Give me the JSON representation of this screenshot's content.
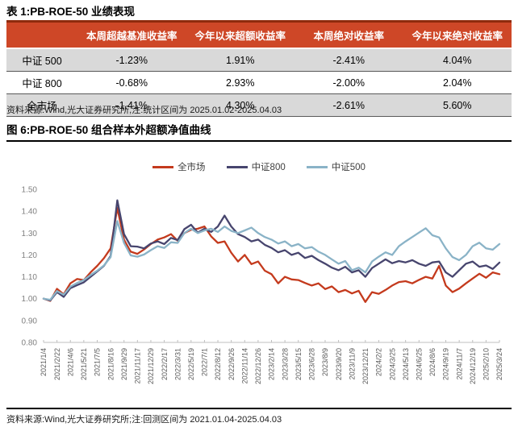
{
  "table": {
    "title": "表 1:PB-ROE-50 业绩表现",
    "headers": [
      "",
      "本周超越基准收益率",
      "今年以来超额收益率",
      "本周绝对收益率",
      "今年以来绝对收益率"
    ],
    "rows": [
      {
        "label": "中证 500",
        "values": [
          "-1.23%",
          "1.91%",
          "-2.41%",
          "4.04%"
        ]
      },
      {
        "label": "中证 800",
        "values": [
          "-0.68%",
          "2.93%",
          "-2.00%",
          "2.04%"
        ]
      },
      {
        "label": "全市场",
        "values": [
          "-1.41%",
          "4.30%",
          "-2.61%",
          "5.60%"
        ]
      }
    ],
    "note": "资料来源:Wind,光大证券研究所,注:统计区间为 2025.01.02-2025.04.03",
    "header_bg": "#CE4727",
    "header_top_border": "#8E2A0D",
    "shade_row_bg": "#D9D9D9"
  },
  "figure": {
    "title": "图 6:PB-ROE-50 组合样本外超额净值曲线",
    "note": "资料来源:Wind,光大证券研究所;注:回测区间为 2021.01.04-2025.04.03"
  },
  "chart_data": {
    "type": "line",
    "title": "PB-ROE-50 组合样本外超额净值曲线",
    "ylim": [
      0.8,
      1.5
    ],
    "yticks": [
      0.8,
      0.9,
      1.0,
      1.1,
      1.2,
      1.3,
      1.4,
      1.5
    ],
    "grid": false,
    "legend_position": "top",
    "axis_color": "#BFBFBF",
    "x_tick_labels": [
      "2021/1/4",
      "2021/2/22",
      "2021/4/6",
      "2021/5/21",
      "2021/7/5",
      "2021/8/16",
      "2021/9/29",
      "2021/11/17",
      "2021/12/29",
      "2022/2/17",
      "2022/3/31",
      "2022/5/19",
      "2022/7/1",
      "2022/8/12",
      "2022/9/26",
      "2022/11/14",
      "2022/12/26",
      "2023/2/14",
      "2023/3/28",
      "2023/5/15",
      "2023/6/28",
      "2023/8/9",
      "2023/9/20",
      "2023/11/9",
      "2023/12/21",
      "2024/2/2",
      "2024/3/25",
      "2024/5/13",
      "2024/6/25",
      "2024/8/6",
      "2024/9/19",
      "2024/11/7",
      "2024/12/19",
      "2025/2/10",
      "2025/3/24"
    ],
    "series": [
      {
        "name": "全市场",
        "key": "all-market",
        "color": "#C43A1D",
        "values": [
          1.0,
          0.99,
          1.045,
          1.02,
          1.07,
          1.09,
          1.085,
          1.12,
          1.15,
          1.185,
          1.23,
          1.415,
          1.27,
          1.215,
          1.205,
          1.225,
          1.25,
          1.27,
          1.28,
          1.295,
          1.265,
          1.3,
          1.315,
          1.32,
          1.33,
          1.285,
          1.255,
          1.262,
          1.21,
          1.17,
          1.2,
          1.158,
          1.17,
          1.128,
          1.112,
          1.07,
          1.1,
          1.088,
          1.085,
          1.072,
          1.06,
          1.07,
          1.044,
          1.056,
          1.03,
          1.04,
          1.024,
          1.036,
          0.985,
          1.03,
          1.022,
          1.04,
          1.06,
          1.076,
          1.08,
          1.07,
          1.086,
          1.1,
          1.092,
          1.15,
          1.06,
          1.03,
          1.046,
          1.07,
          1.092,
          1.114,
          1.096,
          1.12,
          1.112
        ]
      },
      {
        "name": "中证800",
        "key": "csi800",
        "color": "#47456E",
        "values": [
          1.0,
          0.992,
          1.03,
          1.008,
          1.048,
          1.062,
          1.075,
          1.1,
          1.125,
          1.15,
          1.195,
          1.45,
          1.295,
          1.24,
          1.238,
          1.23,
          1.252,
          1.262,
          1.25,
          1.278,
          1.268,
          1.318,
          1.338,
          1.302,
          1.32,
          1.305,
          1.33,
          1.38,
          1.33,
          1.295,
          1.282,
          1.262,
          1.27,
          1.246,
          1.232,
          1.212,
          1.222,
          1.2,
          1.21,
          1.186,
          1.196,
          1.176,
          1.16,
          1.142,
          1.13,
          1.146,
          1.12,
          1.13,
          1.1,
          1.14,
          1.16,
          1.18,
          1.162,
          1.172,
          1.166,
          1.176,
          1.16,
          1.15,
          1.166,
          1.17,
          1.12,
          1.1,
          1.13,
          1.16,
          1.17,
          1.146,
          1.152,
          1.136,
          1.165
        ]
      },
      {
        "name": "中证500",
        "key": "csi500",
        "color": "#8AB3C7",
        "values": [
          1.0,
          0.995,
          1.035,
          1.018,
          1.055,
          1.072,
          1.085,
          1.108,
          1.128,
          1.152,
          1.19,
          1.355,
          1.255,
          1.198,
          1.192,
          1.202,
          1.222,
          1.24,
          1.232,
          1.258,
          1.255,
          1.3,
          1.32,
          1.3,
          1.312,
          1.32,
          1.305,
          1.33,
          1.31,
          1.3,
          1.312,
          1.325,
          1.3,
          1.282,
          1.27,
          1.252,
          1.262,
          1.24,
          1.25,
          1.23,
          1.236,
          1.215,
          1.2,
          1.18,
          1.16,
          1.172,
          1.13,
          1.142,
          1.12,
          1.17,
          1.192,
          1.212,
          1.2,
          1.24,
          1.262,
          1.282,
          1.302,
          1.322,
          1.29,
          1.28,
          1.23,
          1.19,
          1.176,
          1.2,
          1.24,
          1.256,
          1.23,
          1.224,
          1.25
        ]
      }
    ]
  }
}
